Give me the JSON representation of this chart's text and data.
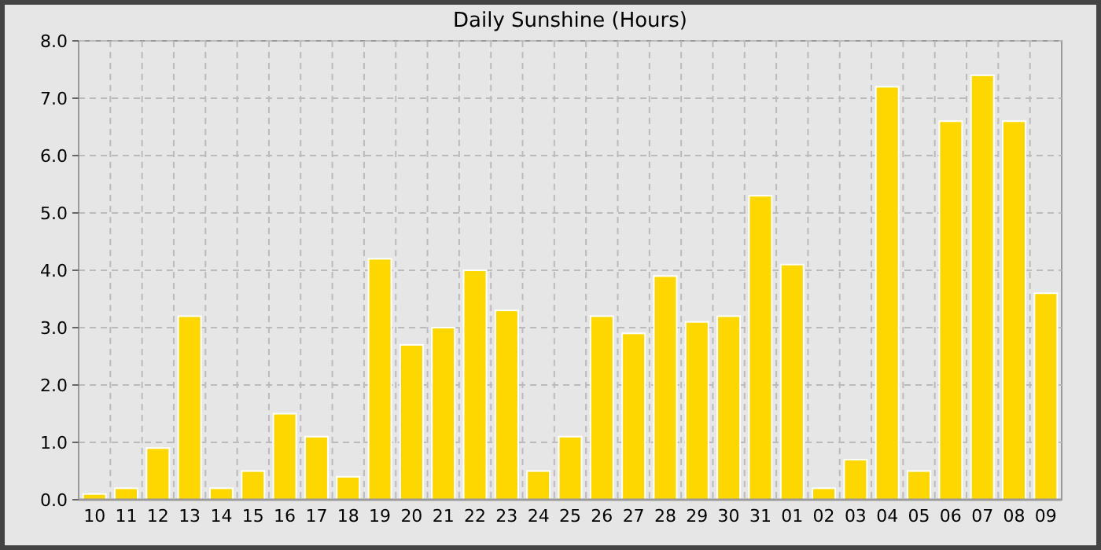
{
  "chart_data": {
    "type": "bar",
    "title": "Daily Sunshine (Hours)",
    "categories": [
      "10",
      "11",
      "12",
      "13",
      "14",
      "15",
      "16",
      "17",
      "18",
      "19",
      "20",
      "21",
      "22",
      "23",
      "24",
      "25",
      "26",
      "27",
      "28",
      "29",
      "30",
      "31",
      "01",
      "02",
      "03",
      "04",
      "05",
      "06",
      "07",
      "08",
      "09"
    ],
    "values": [
      0.1,
      0.2,
      0.9,
      3.2,
      0.2,
      0.5,
      1.5,
      1.1,
      0.4,
      4.2,
      2.7,
      3.0,
      4.0,
      3.3,
      0.5,
      1.1,
      3.2,
      2.9,
      3.9,
      3.1,
      3.2,
      5.3,
      4.1,
      0.2,
      0.7,
      7.2,
      0.5,
      6.6,
      7.4,
      6.6,
      3.6
    ],
    "color": "#ffd700",
    "ylim": [
      0,
      8
    ],
    "yticks": [
      {
        "value": 0,
        "label": "0.0"
      },
      {
        "value": 1,
        "label": "1.0"
      },
      {
        "value": 2,
        "label": "2.0"
      },
      {
        "value": 3,
        "label": "3.0"
      },
      {
        "value": 4,
        "label": "4.0"
      },
      {
        "value": 5,
        "label": "5.0"
      },
      {
        "value": 6,
        "label": "6.0"
      },
      {
        "value": 7,
        "label": "7.0"
      },
      {
        "value": 8,
        "label": "8.0"
      }
    ],
    "grid": true
  }
}
